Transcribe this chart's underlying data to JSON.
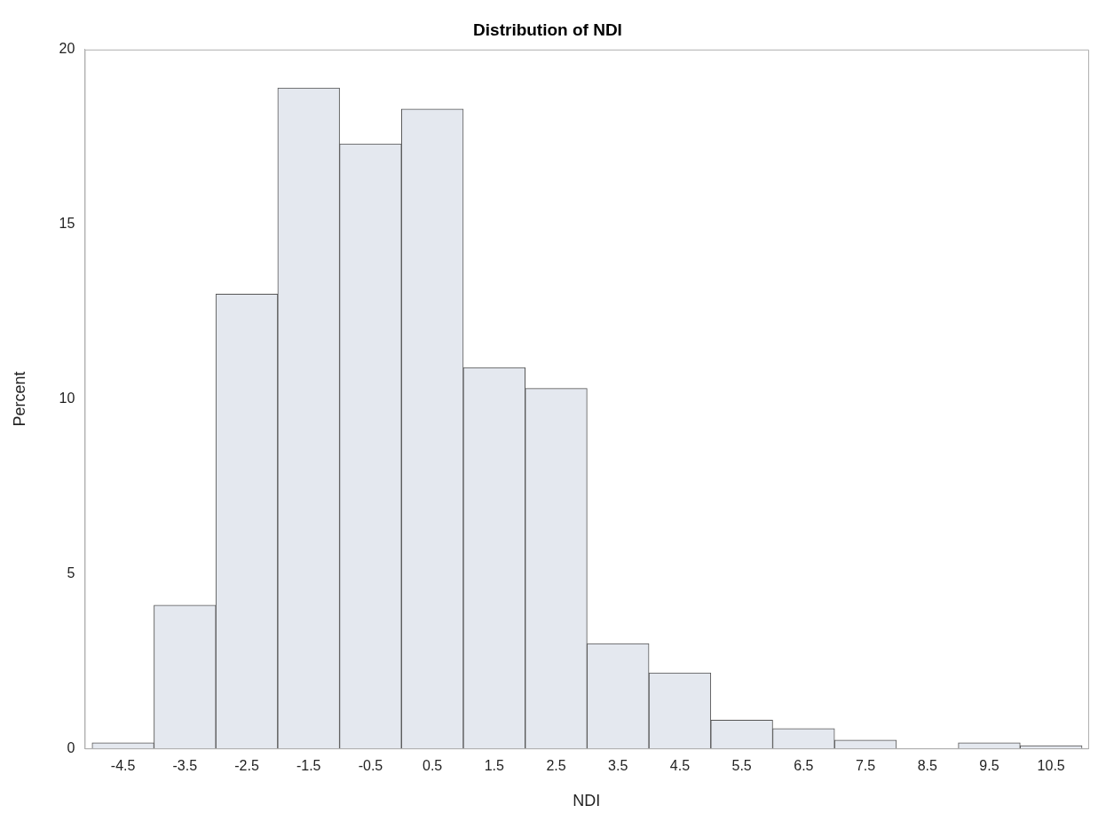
{
  "chart_data": {
    "type": "histogram",
    "title": "Distribution of NDI",
    "xlabel": "NDI",
    "ylabel": "Percent",
    "bins": [
      -5,
      -4,
      -3,
      -2,
      -1,
      0,
      1,
      2,
      3,
      4,
      5,
      6,
      7,
      8,
      9,
      10,
      11
    ],
    "values": [
      0.16,
      4.1,
      13.0,
      18.9,
      17.3,
      18.3,
      10.9,
      10.3,
      3.0,
      2.16,
      0.81,
      0.57,
      0.24,
      0,
      0.16,
      0.08
    ],
    "color": "#e4e8ef",
    "xlim": [
      -5.12,
      11.1
    ],
    "xticks": [
      -4.5,
      -3.5,
      -2.5,
      -1.5,
      -0.5,
      0.5,
      1.5,
      2.5,
      3.5,
      4.5,
      5.5,
      6.5,
      7.5,
      8.5,
      9.5,
      10.5
    ],
    "ylim": [
      0,
      20
    ],
    "yticks": [
      0,
      5,
      10,
      15,
      20
    ],
    "grid": false,
    "legend": false
  }
}
